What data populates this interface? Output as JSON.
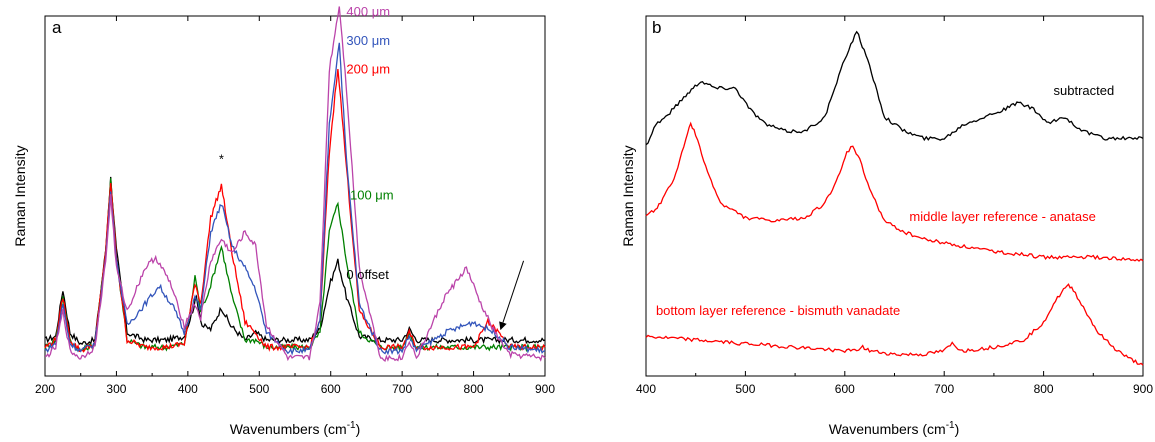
{
  "chart_data": [
    {
      "type": "line",
      "panel": "a",
      "xlabel": "Wavenumbers (cm",
      "xlabel_sup": "-1",
      "xlabel_close": ")",
      "ylabel": "Raman Intensity",
      "xlim": [
        200,
        900
      ],
      "ylim": [
        0,
        100
      ],
      "xticks": [
        200,
        300,
        400,
        500,
        600,
        700,
        800,
        900
      ],
      "y_tick_labels": false,
      "grid": false,
      "series": [
        {
          "name": "0 offset",
          "color": "#000000",
          "x": [
            200,
            215,
            225,
            235,
            250,
            270,
            285,
            292,
            300,
            315,
            340,
            370,
            395,
            405,
            412,
            420,
            432,
            447,
            460,
            480,
            495,
            510,
            540,
            570,
            585,
            598,
            610,
            622,
            640,
            670,
            700,
            710,
            720,
            760,
            800,
            830,
            850,
            900
          ],
          "y": [
            10,
            11,
            24,
            12,
            9,
            10,
            35,
            55,
            35,
            12,
            10,
            10,
            11,
            17,
            22,
            14,
            13,
            19,
            14,
            10,
            12,
            10,
            10,
            10,
            13,
            25,
            32,
            22,
            11,
            10,
            10,
            13,
            10,
            10,
            10,
            10,
            10,
            10
          ]
        },
        {
          "name": "100 μm",
          "color": "#008000",
          "x": [
            200,
            215,
            225,
            235,
            250,
            270,
            285,
            292,
            300,
            315,
            340,
            370,
            395,
            405,
            410,
            418,
            430,
            447,
            462,
            480,
            495,
            510,
            540,
            570,
            585,
            598,
            610,
            622,
            640,
            670,
            700,
            710,
            720,
            760,
            800,
            830,
            850,
            900
          ],
          "y": [
            8,
            10,
            22,
            10,
            7,
            9,
            35,
            55,
            33,
            10,
            8,
            8,
            9,
            20,
            28,
            18,
            24,
            36,
            22,
            10,
            10,
            8,
            8,
            8,
            12,
            40,
            48,
            32,
            12,
            8,
            8,
            12,
            8,
            8,
            8,
            8,
            8,
            8
          ]
        },
        {
          "name": "200 μm",
          "color": "#ff0000",
          "x": [
            200,
            215,
            225,
            235,
            250,
            270,
            285,
            292,
            300,
            315,
            340,
            370,
            395,
            405,
            410,
            418,
            432,
            447,
            462,
            480,
            495,
            510,
            540,
            570,
            585,
            598,
            610,
            622,
            640,
            670,
            700,
            710,
            720,
            760,
            800,
            820,
            835,
            850,
            900
          ],
          "y": [
            8,
            10,
            22,
            10,
            7,
            9,
            35,
            54,
            33,
            10,
            8,
            8,
            9,
            20,
            26,
            20,
            44,
            53,
            34,
            15,
            12,
            8,
            8,
            8,
            15,
            62,
            86,
            58,
            18,
            8,
            8,
            12,
            8,
            8,
            8,
            15,
            12,
            8,
            8
          ]
        },
        {
          "name": "300 μm",
          "color": "#3355bb",
          "x": [
            200,
            215,
            225,
            235,
            250,
            270,
            285,
            292,
            300,
            315,
            340,
            360,
            380,
            395,
            410,
            418,
            432,
            447,
            462,
            480,
            495,
            510,
            540,
            570,
            585,
            598,
            612,
            622,
            640,
            670,
            700,
            710,
            720,
            760,
            800,
            830,
            850,
            900
          ],
          "y": [
            7,
            9,
            20,
            9,
            7,
            9,
            33,
            52,
            32,
            14,
            20,
            25,
            19,
            12,
            22,
            18,
            40,
            48,
            36,
            30,
            24,
            12,
            7,
            7,
            15,
            70,
            93,
            60,
            20,
            7,
            7,
            11,
            7,
            12,
            15,
            12,
            8,
            7
          ]
        },
        {
          "name": "400 μm",
          "color": "#bb44aa",
          "x": [
            200,
            215,
            225,
            235,
            250,
            270,
            285,
            292,
            300,
            315,
            340,
            355,
            375,
            395,
            410,
            418,
            432,
            447,
            462,
            480,
            495,
            510,
            540,
            570,
            585,
            598,
            612,
            622,
            640,
            670,
            700,
            710,
            720,
            760,
            790,
            810,
            830,
            850,
            900
          ],
          "y": [
            5,
            8,
            18,
            7,
            5,
            8,
            32,
            50,
            30,
            18,
            30,
            33,
            26,
            14,
            20,
            16,
            32,
            38,
            34,
            40,
            36,
            14,
            5,
            5,
            20,
            85,
            103,
            80,
            30,
            5,
            5,
            10,
            5,
            22,
            30,
            20,
            12,
            6,
            5
          ]
        }
      ],
      "annotations": [
        {
          "text": "*",
          "x": 447,
          "y": 59,
          "color": "#000000"
        },
        {
          "text": "*",
          "x": 612,
          "y": 109,
          "color": "#000000"
        },
        {
          "text": "400 μm",
          "x": 622,
          "y": 100,
          "color": "#bb44aa"
        },
        {
          "text": "300 μm",
          "x": 622,
          "y": 92,
          "color": "#3355bb"
        },
        {
          "text": "200 μm",
          "x": 622,
          "y": 84,
          "color": "#ff0000"
        },
        {
          "text": "100 μm",
          "x": 627,
          "y": 49,
          "color": "#008000"
        },
        {
          "text": "0 offset",
          "x": 622,
          "y": 27,
          "color": "#000000"
        }
      ],
      "arrow": {
        "from_x": 870,
        "from_y": 32,
        "to_x": 838,
        "to_y": 13
      }
    },
    {
      "type": "line",
      "panel": "b",
      "xlabel": "Wavenumbers (cm",
      "xlabel_sup": "-1",
      "xlabel_close": ")",
      "ylabel": "Raman Intensity",
      "xlim": [
        400,
        900
      ],
      "ylim": [
        0,
        100
      ],
      "xticks": [
        400,
        500,
        600,
        700,
        800,
        900
      ],
      "y_tick_labels": false,
      "grid": false,
      "series": [
        {
          "name": "subtracted",
          "color": "#000000",
          "x": [
            400,
            410,
            420,
            440,
            455,
            470,
            490,
            505,
            520,
            540,
            560,
            580,
            600,
            612,
            625,
            640,
            660,
            680,
            700,
            720,
            740,
            760,
            775,
            790,
            805,
            820,
            840,
            860,
            880,
            900
          ],
          "y": [
            64,
            70,
            72,
            78,
            82,
            80,
            80,
            74,
            70,
            68,
            68,
            72,
            88,
            96,
            86,
            72,
            68,
            66,
            66,
            70,
            72,
            74,
            76,
            74,
            70,
            72,
            68,
            66,
            66,
            66
          ]
        },
        {
          "name": "middle layer reference - anatase",
          "color": "#ff0000",
          "x": [
            400,
            415,
            430,
            440,
            445,
            450,
            460,
            475,
            500,
            530,
            560,
            580,
            595,
            602,
            608,
            615,
            625,
            640,
            660,
            680,
            700,
            740,
            800,
            850,
            900
          ],
          "y": [
            44,
            48,
            56,
            66,
            70,
            67,
            58,
            48,
            44,
            43,
            44,
            48,
            56,
            62,
            64,
            60,
            52,
            43,
            40,
            38,
            37,
            35,
            33,
            33,
            32
          ],
          "label": "middle layer reference - anatase"
        },
        {
          "name": "bottom layer reference - bismuth vanadate",
          "color": "#ff0000",
          "x": [
            400,
            450,
            500,
            550,
            600,
            610,
            618,
            625,
            650,
            680,
            700,
            708,
            712,
            720,
            750,
            780,
            800,
            810,
            820,
            825,
            830,
            840,
            855,
            870,
            885,
            900
          ],
          "y": [
            11,
            10,
            9,
            8,
            7,
            7,
            8,
            7,
            6,
            6,
            7,
            9,
            8,
            7,
            8,
            10,
            15,
            20,
            24,
            25,
            24,
            19,
            12,
            8,
            5,
            3
          ],
          "label": "bottom layer reference - bismuth vanadate"
        }
      ],
      "annotations": [
        {
          "text": "subtracted",
          "x": 810,
          "y": 78,
          "color": "#000000"
        },
        {
          "text": "middle layer reference - anatase",
          "x": 665,
          "y": 43,
          "color": "#ff0000"
        },
        {
          "text": "bottom layer reference - bismuth vanadate",
          "x": 410,
          "y": 17,
          "color": "#ff0000"
        }
      ]
    }
  ],
  "labels": {
    "panel_a_letter": "a",
    "panel_b_letter": "b"
  }
}
